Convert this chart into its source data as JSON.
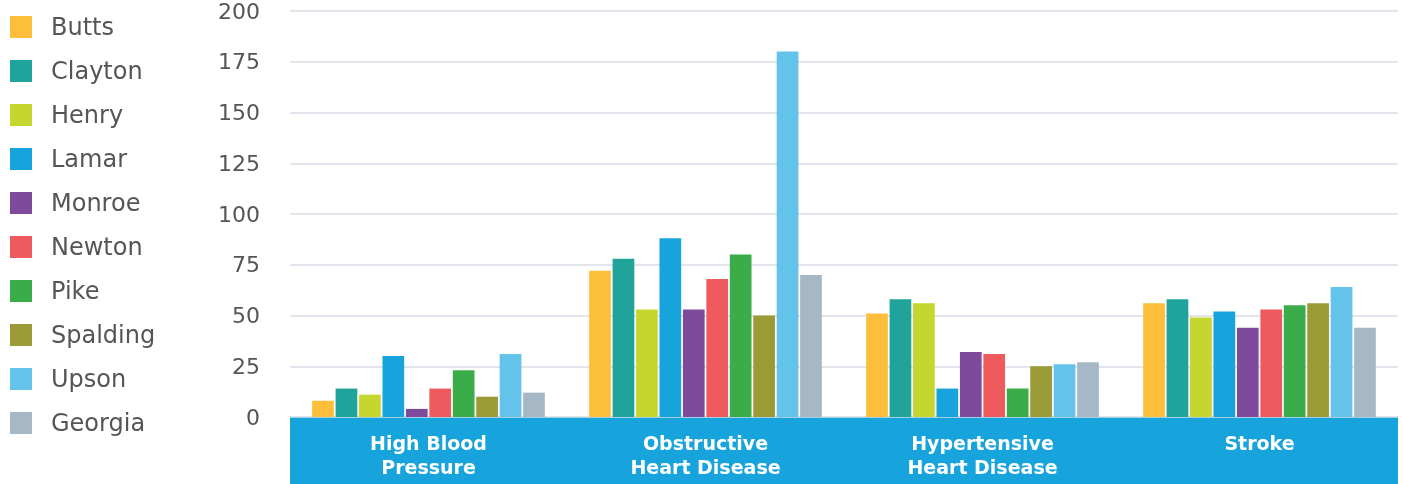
{
  "chart_data": {
    "type": "bar",
    "categories": [
      "High Blood\nPressure",
      "Obstructive\nHeart Disease",
      "Hypertensive\nHeart Disease",
      "Stroke"
    ],
    "series": [
      {
        "name": "Butts",
        "color": "#fdbe3b",
        "values": [
          8,
          72,
          51,
          56
        ]
      },
      {
        "name": "Clayton",
        "color": "#1fa39a",
        "values": [
          14,
          78,
          58,
          58
        ]
      },
      {
        "name": "Henry",
        "color": "#c5d62e",
        "values": [
          11,
          53,
          56,
          49
        ]
      },
      {
        "name": "Lamar",
        "color": "#17a3dc",
        "values": [
          30,
          88,
          14,
          52
        ]
      },
      {
        "name": "Monroe",
        "color": "#7e4b9c",
        "values": [
          4,
          53,
          32,
          44
        ]
      },
      {
        "name": "Newton",
        "color": "#ef5a5f",
        "values": [
          14,
          68,
          31,
          53
        ]
      },
      {
        "name": "Pike",
        "color": "#3aad4a",
        "values": [
          23,
          80,
          14,
          55
        ]
      },
      {
        "name": "Spalding",
        "color": "#9a9a36",
        "values": [
          10,
          50,
          25,
          56
        ]
      },
      {
        "name": "Upson",
        "color": "#63c3ea",
        "values": [
          31,
          180,
          26,
          64
        ]
      },
      {
        "name": "Georgia",
        "color": "#a6b8c6",
        "values": [
          12,
          70,
          27,
          44
        ]
      }
    ],
    "ylim": [
      0,
      200
    ],
    "yticks": [
      0,
      25,
      50,
      75,
      100,
      125,
      150,
      175,
      200
    ],
    "grid": "y",
    "legend": "left"
  }
}
